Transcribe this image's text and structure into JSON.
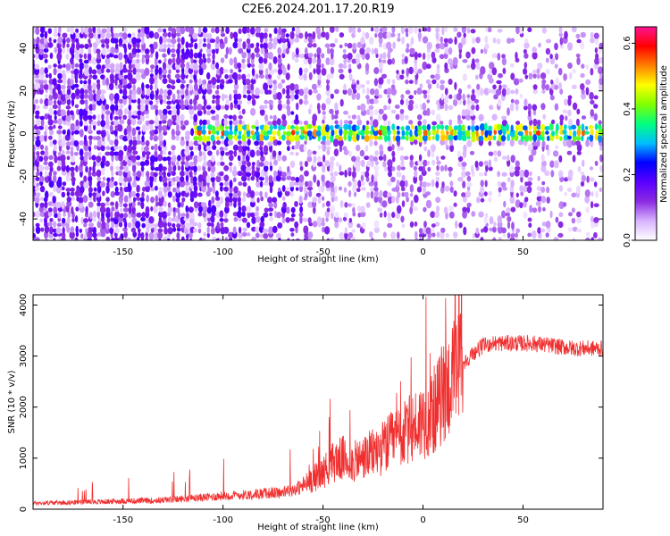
{
  "figure": {
    "title": "C2E6.2024.201.17.20.R19"
  },
  "chart_data": [
    {
      "type": "heatmap",
      "xlabel": "Height of straight line (km)",
      "ylabel": "Frequency (Hz)",
      "xlim": [
        -195,
        90
      ],
      "ylim": [
        -50,
        50
      ],
      "xticks": [
        -150,
        -100,
        -50,
        0,
        50
      ],
      "yticks": [
        -40,
        -20,
        0,
        20,
        40
      ],
      "colorbar": {
        "label": "Normalized spectral amplitude",
        "range": [
          0,
          0.65
        ],
        "ticks": [
          0.0,
          0.2,
          0.4,
          0.6
        ],
        "colormap": [
          "#ffffff",
          "#d9b3ff",
          "#8a2be2",
          "#5a00ff",
          "#0000ff",
          "#00bfff",
          "#00ff80",
          "#80ff00",
          "#ffff00",
          "#ff8000",
          "#ff0000",
          "#ff1493"
        ]
      },
      "signal_band": {
        "center_hz": 0,
        "x_start_km": -115,
        "x_end_km": 90,
        "peak_amplitude": 0.6
      },
      "grid": false
    },
    {
      "type": "line",
      "xlabel": "Height of straight line (km)",
      "ylabel": "SNR (10 * v/v)",
      "xlim": [
        -195,
        90
      ],
      "ylim": [
        0,
        4200
      ],
      "xticks": [
        -150,
        -100,
        -50,
        0,
        50
      ],
      "yticks": [
        0,
        1000,
        2000,
        3000,
        4000
      ],
      "line_color": "#f03030",
      "grid": false,
      "series": [
        {
          "x": [
            -195,
            -180,
            -165,
            -150,
            -135,
            -120,
            -110,
            -100,
            -90,
            -80,
            -70,
            -65,
            -60,
            -55,
            -50,
            -47,
            -44,
            -40,
            -36,
            -33,
            -30,
            -25,
            -20,
            -15,
            -10,
            -5,
            0,
            5,
            8,
            10,
            14,
            17,
            20,
            25,
            30,
            35,
            45,
            55,
            65,
            75,
            90
          ],
          "y": [
            120,
            130,
            140,
            160,
            170,
            200,
            230,
            260,
            280,
            310,
            330,
            380,
            450,
            600,
            720,
            850,
            950,
            1000,
            900,
            950,
            1000,
            1100,
            1200,
            1350,
            1450,
            1600,
            1750,
            1900,
            2100,
            2300,
            2500,
            2700,
            2850,
            3050,
            3200,
            3250,
            3250,
            3250,
            3200,
            3150,
            3150
          ]
        }
      ]
    }
  ]
}
